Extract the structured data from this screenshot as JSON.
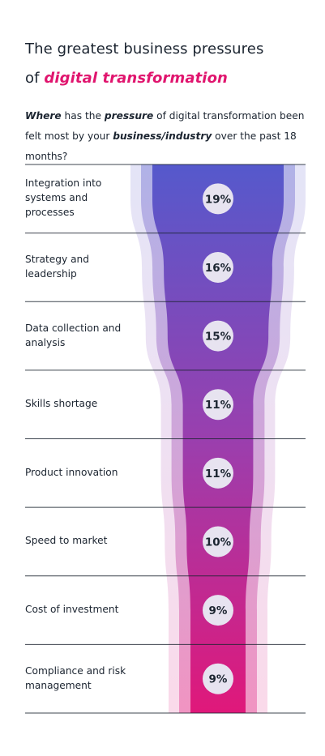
{
  "title": {
    "line1": "The greatest business pressures",
    "line2_prefix": "of ",
    "line2_accent": "digital transformation"
  },
  "question": {
    "part1": "Where",
    "part2": " has the ",
    "part3": "pressure",
    "part4": " of digital transformation been felt most by your ",
    "part5": "business/industry",
    "part6": " over the past 18 months?"
  },
  "colors": {
    "accent": "#e0156e",
    "funnel_top": "#5559cc",
    "funnel_bottom": "#e0187a",
    "rule": "#1b2430"
  },
  "chart_data": {
    "type": "funnel",
    "categories": [
      "Integration into systems and processes",
      "Strategy and leadership",
      "Data collection and analysis",
      "Skills shortage",
      "Product innovation",
      "Speed to market",
      "Cost of investment",
      "Compliance and risk management"
    ],
    "values": [
      19,
      16,
      15,
      11,
      11,
      10,
      9,
      9
    ],
    "value_labels": [
      "19%",
      "16%",
      "15%",
      "11%",
      "11%",
      "10%",
      "9%",
      "9%"
    ],
    "unit": "%"
  }
}
